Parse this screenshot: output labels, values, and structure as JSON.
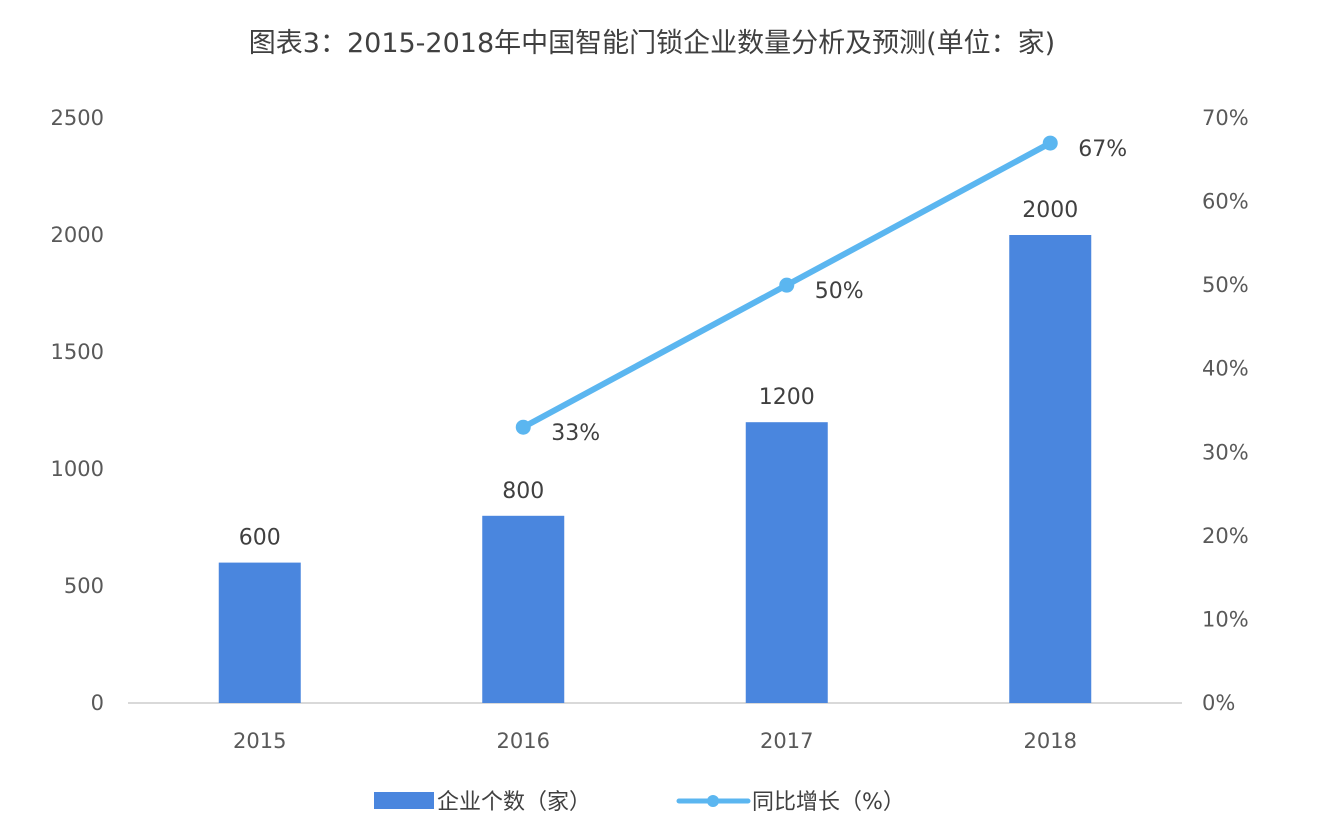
{
  "chart_data": {
    "type": "bar",
    "title": "图表3：2015-2018年中国智能门锁企业数量分析及预测(单位：家)",
    "categories": [
      "2015",
      "2016",
      "2017",
      "2018"
    ],
    "series": [
      {
        "name": "企业个数（家）",
        "type": "bar",
        "axis": "left",
        "values": [
          600,
          800,
          1200,
          2000
        ],
        "data_labels": [
          "600",
          "800",
          "1200",
          "2000"
        ]
      },
      {
        "name": "同比增长（%）",
        "type": "line",
        "axis": "right",
        "values": [
          null,
          33,
          50,
          67
        ],
        "data_labels": [
          "",
          "33%",
          "50%",
          "67%"
        ]
      }
    ],
    "left_axis": {
      "range": [
        0,
        2500
      ],
      "ticks": [
        "0",
        "500",
        "1000",
        "1500",
        "2000",
        "2500"
      ]
    },
    "right_axis": {
      "range": [
        0,
        70
      ],
      "ticks": [
        "0%",
        "10%",
        "20%",
        "30%",
        "40%",
        "50%",
        "60%",
        "70%"
      ]
    },
    "grid": false,
    "legend_position": "bottom-center",
    "colors": {
      "bar": "#4A86DE",
      "line": "#5BB6F0",
      "axis": "#D9D9D9",
      "text": "#404040",
      "tick": "#595959"
    }
  }
}
